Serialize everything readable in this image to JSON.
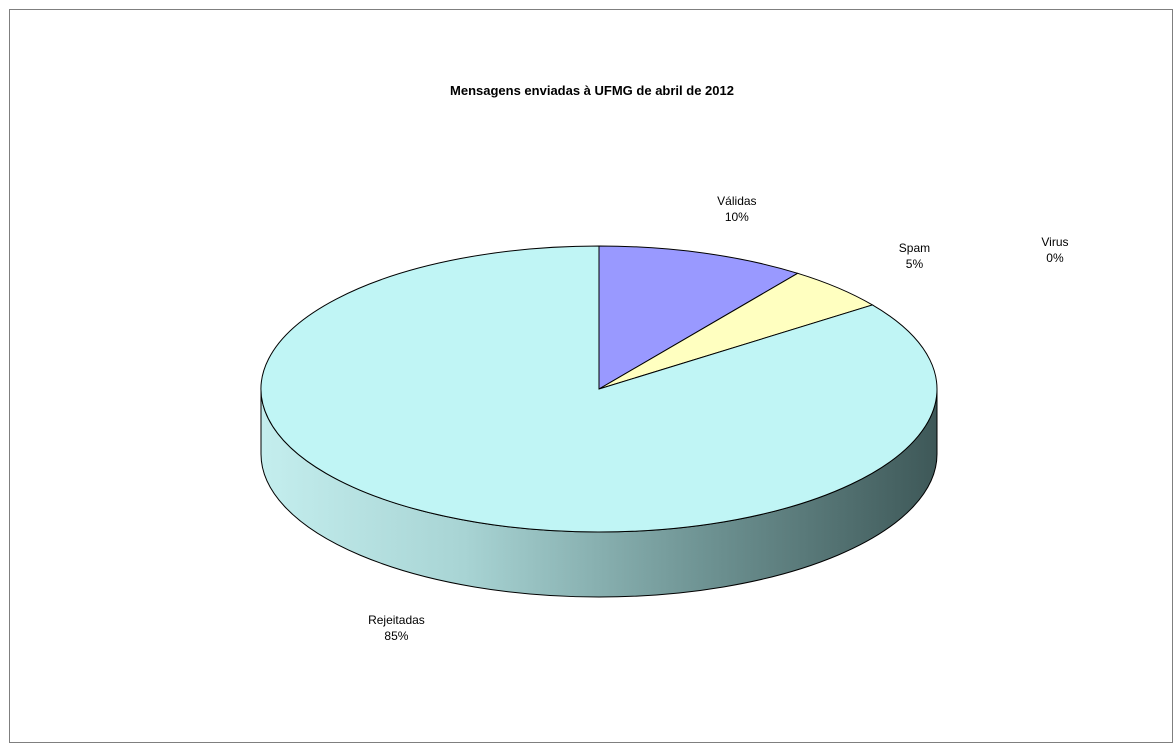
{
  "chart_data": {
    "type": "pie",
    "style": "3d",
    "title": "Mensagens enviadas à UFMG de abril de 2012",
    "categories": [
      "Válidas",
      "Spam",
      "Virus",
      "Rejeitadas"
    ],
    "values": [
      10,
      5,
      0,
      85
    ],
    "value_labels": [
      "10%",
      "5%",
      "0%",
      "85%"
    ],
    "colors": [
      "#9999ff",
      "#ffffc0",
      "#993366",
      "#c0f5f5"
    ],
    "legend": "none"
  }
}
